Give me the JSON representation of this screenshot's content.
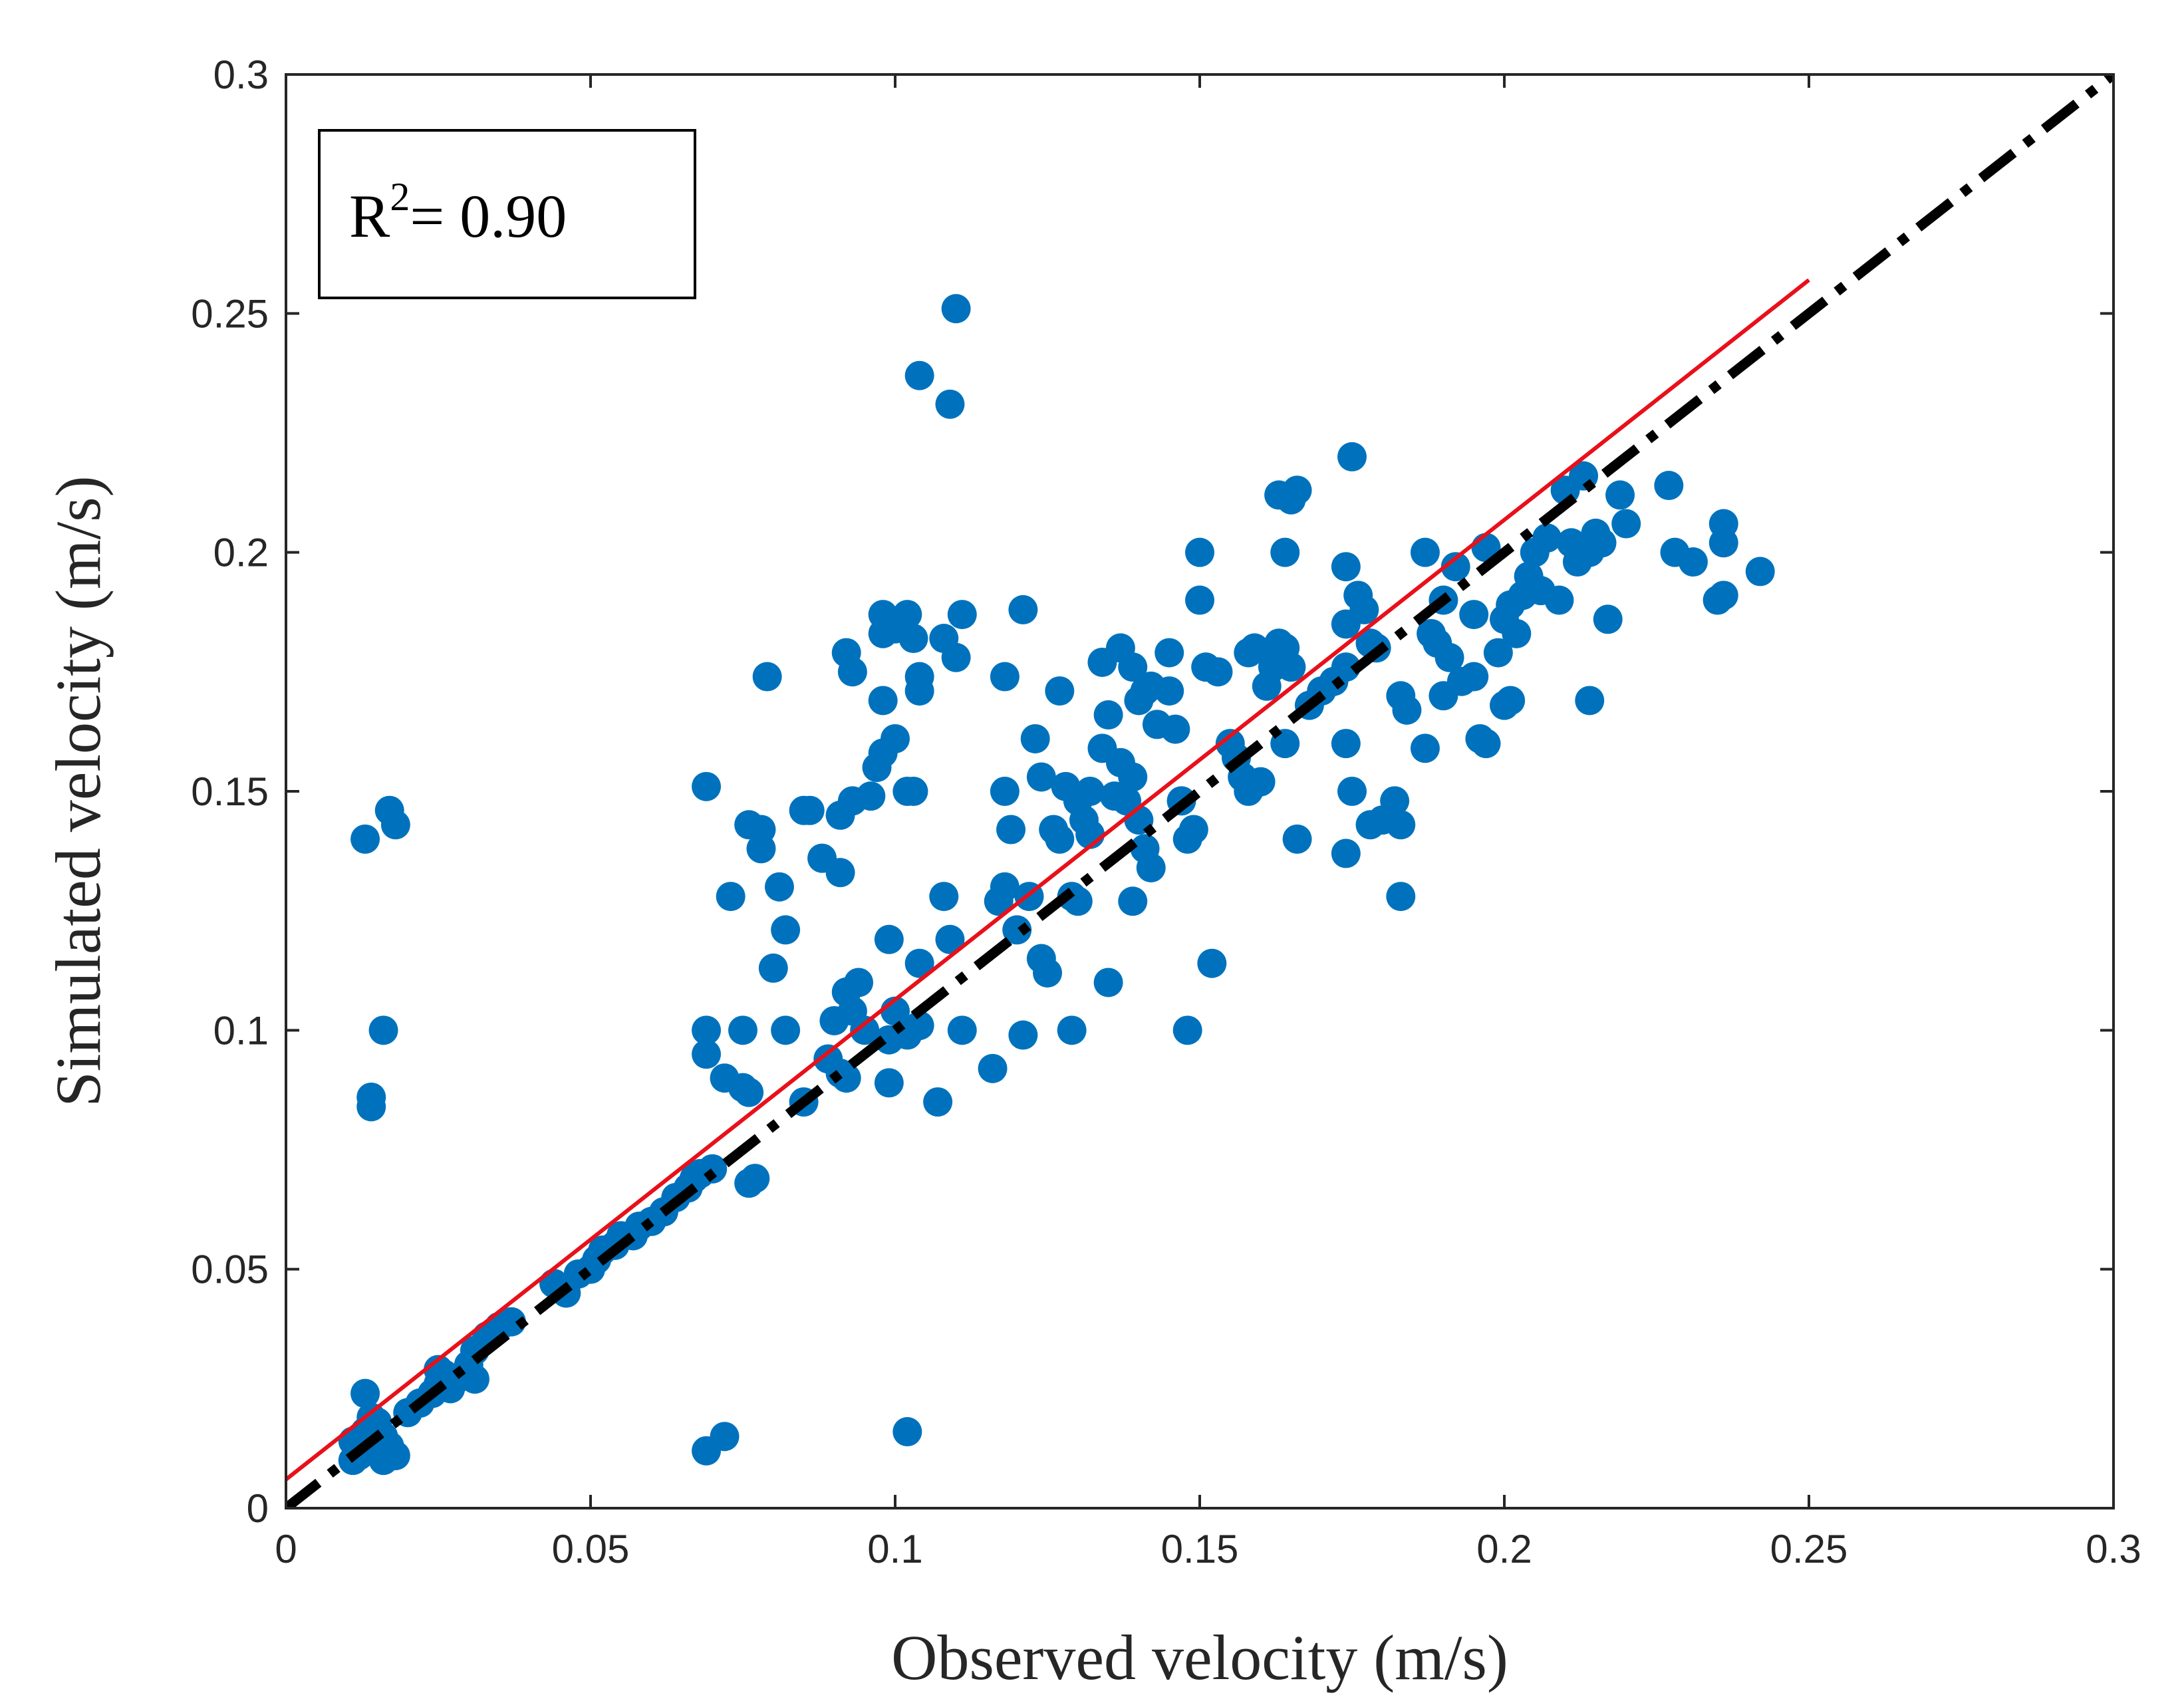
{
  "chart_data": {
    "type": "scatter",
    "xlabel": "Observed velocity (m/s)",
    "ylabel": "Simulated velocity (m/s)",
    "xlim": [
      0,
      0.3
    ],
    "ylim": [
      0,
      0.3
    ],
    "xticks": [
      0,
      0.05,
      0.1,
      0.15,
      0.2,
      0.25,
      0.3
    ],
    "yticks": [
      0,
      0.05,
      0.1,
      0.15,
      0.2,
      0.25,
      0.3
    ],
    "xtick_labels": [
      "0",
      "0.05",
      "0.1",
      "0.15",
      "0.2",
      "0.25",
      "0.3"
    ],
    "ytick_labels": [
      "0",
      "0.05",
      "0.1",
      "0.15",
      "0.2",
      "0.25",
      "0.3"
    ],
    "annotation": {
      "r_symbol": "R",
      "superscript": "2",
      "value_text": "= 0.90"
    },
    "colors": {
      "points": "#0072BD",
      "fit_line": "#E8101A",
      "identity_line": "#000000"
    },
    "fit_line": {
      "name": "linear fit",
      "x": [
        0,
        0.25
      ],
      "y": [
        0.006,
        0.257
      ]
    },
    "identity_line": {
      "name": "1:1 line",
      "x": [
        0,
        0.3
      ],
      "y": [
        0,
        0.3
      ]
    },
    "series": [
      {
        "name": "observations",
        "points": [
          [
            0.011,
            0.014
          ],
          [
            0.012,
            0.012
          ],
          [
            0.013,
            0.016
          ],
          [
            0.014,
            0.012
          ],
          [
            0.015,
            0.018
          ],
          [
            0.016,
            0.015
          ],
          [
            0.012,
            0.011
          ],
          [
            0.017,
            0.013
          ],
          [
            0.018,
            0.011
          ],
          [
            0.013,
            0.024
          ],
          [
            0.014,
            0.019
          ],
          [
            0.011,
            0.01
          ],
          [
            0.016,
            0.01
          ],
          [
            0.015,
            0.014
          ],
          [
            0.013,
            0.14
          ],
          [
            0.017,
            0.146
          ],
          [
            0.018,
            0.143
          ],
          [
            0.016,
            0.1
          ],
          [
            0.014,
            0.086
          ],
          [
            0.014,
            0.084
          ],
          [
            0.02,
            0.02
          ],
          [
            0.022,
            0.022
          ],
          [
            0.024,
            0.024
          ],
          [
            0.025,
            0.026
          ],
          [
            0.026,
            0.028
          ],
          [
            0.028,
            0.027
          ],
          [
            0.03,
            0.03
          ],
          [
            0.031,
            0.033
          ],
          [
            0.033,
            0.036
          ],
          [
            0.035,
            0.038
          ],
          [
            0.037,
            0.039
          ],
          [
            0.025,
            0.029
          ],
          [
            0.027,
            0.025
          ],
          [
            0.031,
            0.027
          ],
          [
            0.044,
            0.047
          ],
          [
            0.046,
            0.045
          ],
          [
            0.048,
            0.049
          ],
          [
            0.05,
            0.05
          ],
          [
            0.051,
            0.052
          ],
          [
            0.052,
            0.054
          ],
          [
            0.054,
            0.055
          ],
          [
            0.055,
            0.057
          ],
          [
            0.057,
            0.057
          ],
          [
            0.058,
            0.059
          ],
          [
            0.06,
            0.06
          ],
          [
            0.062,
            0.062
          ],
          [
            0.064,
            0.065
          ],
          [
            0.066,
            0.067
          ],
          [
            0.067,
            0.069
          ],
          [
            0.068,
            0.07
          ],
          [
            0.07,
            0.071
          ],
          [
            0.077,
            0.069
          ],
          [
            0.076,
            0.068
          ],
          [
            0.072,
            0.09
          ],
          [
            0.075,
            0.088
          ],
          [
            0.076,
            0.087
          ],
          [
            0.069,
            0.095
          ],
          [
            0.069,
            0.1
          ],
          [
            0.075,
            0.1
          ],
          [
            0.08,
            0.113
          ],
          [
            0.082,
            0.121
          ],
          [
            0.082,
            0.1
          ],
          [
            0.073,
            0.128
          ],
          [
            0.081,
            0.13
          ],
          [
            0.078,
            0.138
          ],
          [
            0.076,
            0.143
          ],
          [
            0.078,
            0.142
          ],
          [
            0.085,
            0.146
          ],
          [
            0.086,
            0.146
          ],
          [
            0.091,
            0.133
          ],
          [
            0.088,
            0.136
          ],
          [
            0.069,
            0.151
          ],
          [
            0.079,
            0.174
          ],
          [
            0.085,
            0.085
          ],
          [
            0.089,
            0.094
          ],
          [
            0.09,
            0.102
          ],
          [
            0.091,
            0.091
          ],
          [
            0.092,
            0.108
          ],
          [
            0.093,
            0.104
          ],
          [
            0.094,
            0.11
          ],
          [
            0.092,
            0.09
          ],
          [
            0.095,
            0.1
          ],
          [
            0.099,
            0.098
          ],
          [
            0.099,
            0.089
          ],
          [
            0.1,
            0.104
          ],
          [
            0.102,
            0.099
          ],
          [
            0.104,
            0.101
          ],
          [
            0.099,
            0.119
          ],
          [
            0.104,
            0.114
          ],
          [
            0.107,
            0.085
          ],
          [
            0.069,
            0.012
          ],
          [
            0.072,
            0.015
          ],
          [
            0.102,
            0.016
          ],
          [
            0.091,
            0.145
          ],
          [
            0.093,
            0.148
          ],
          [
            0.096,
            0.149
          ],
          [
            0.097,
            0.155
          ],
          [
            0.098,
            0.158
          ],
          [
            0.1,
            0.161
          ],
          [
            0.102,
            0.15
          ],
          [
            0.103,
            0.15
          ],
          [
            0.098,
            0.169
          ],
          [
            0.092,
            0.179
          ],
          [
            0.093,
            0.175
          ],
          [
            0.098,
            0.183
          ],
          [
            0.098,
            0.187
          ],
          [
            0.1,
            0.184
          ],
          [
            0.102,
            0.187
          ],
          [
            0.103,
            0.182
          ],
          [
            0.104,
            0.174
          ],
          [
            0.104,
            0.171
          ],
          [
            0.108,
            0.182
          ],
          [
            0.11,
            0.178
          ],
          [
            0.111,
            0.187
          ],
          [
            0.104,
            0.237
          ],
          [
            0.11,
            0.251
          ],
          [
            0.109,
            0.231
          ],
          [
            0.108,
            0.128
          ],
          [
            0.109,
            0.119
          ],
          [
            0.111,
            0.1
          ],
          [
            0.116,
            0.092
          ],
          [
            0.121,
            0.099
          ],
          [
            0.117,
            0.127
          ],
          [
            0.118,
            0.13
          ],
          [
            0.12,
            0.121
          ],
          [
            0.122,
            0.128
          ],
          [
            0.124,
            0.115
          ],
          [
            0.125,
            0.112
          ],
          [
            0.129,
            0.1
          ],
          [
            0.118,
            0.15
          ],
          [
            0.119,
            0.142
          ],
          [
            0.121,
            0.188
          ],
          [
            0.118,
            0.174
          ],
          [
            0.123,
            0.161
          ],
          [
            0.124,
            0.153
          ],
          [
            0.126,
            0.142
          ],
          [
            0.127,
            0.14
          ],
          [
            0.127,
            0.171
          ],
          [
            0.128,
            0.151
          ],
          [
            0.13,
            0.148
          ],
          [
            0.131,
            0.144
          ],
          [
            0.132,
            0.141
          ],
          [
            0.129,
            0.128
          ],
          [
            0.13,
            0.127
          ],
          [
            0.132,
            0.15
          ],
          [
            0.134,
            0.159
          ],
          [
            0.135,
            0.166
          ],
          [
            0.134,
            0.177
          ],
          [
            0.137,
            0.18
          ],
          [
            0.139,
            0.176
          ],
          [
            0.14,
            0.169
          ],
          [
            0.141,
            0.171
          ],
          [
            0.142,
            0.172
          ],
          [
            0.143,
            0.164
          ],
          [
            0.145,
            0.179
          ],
          [
            0.145,
            0.171
          ],
          [
            0.146,
            0.163
          ],
          [
            0.136,
            0.149
          ],
          [
            0.137,
            0.156
          ],
          [
            0.139,
            0.153
          ],
          [
            0.138,
            0.148
          ],
          [
            0.14,
            0.144
          ],
          [
            0.141,
            0.138
          ],
          [
            0.142,
            0.134
          ],
          [
            0.139,
            0.127
          ],
          [
            0.135,
            0.11
          ],
          [
            0.147,
            0.148
          ],
          [
            0.148,
            0.14
          ],
          [
            0.149,
            0.142
          ],
          [
            0.148,
            0.1
          ],
          [
            0.152,
            0.114
          ],
          [
            0.15,
            0.2
          ],
          [
            0.15,
            0.19
          ],
          [
            0.151,
            0.176
          ],
          [
            0.153,
            0.175
          ],
          [
            0.155,
            0.16
          ],
          [
            0.156,
            0.157
          ],
          [
            0.157,
            0.153
          ],
          [
            0.158,
            0.179
          ],
          [
            0.159,
            0.18
          ],
          [
            0.161,
            0.172
          ],
          [
            0.162,
            0.176
          ],
          [
            0.163,
            0.181
          ],
          [
            0.164,
            0.18
          ],
          [
            0.165,
            0.176
          ],
          [
            0.163,
            0.212
          ],
          [
            0.165,
            0.211
          ],
          [
            0.166,
            0.213
          ],
          [
            0.164,
            0.2
          ],
          [
            0.158,
            0.15
          ],
          [
            0.16,
            0.152
          ],
          [
            0.164,
            0.16
          ],
          [
            0.168,
            0.168
          ],
          [
            0.17,
            0.171
          ],
          [
            0.172,
            0.173
          ],
          [
            0.174,
            0.176
          ],
          [
            0.166,
            0.14
          ],
          [
            0.174,
            0.137
          ],
          [
            0.174,
            0.16
          ],
          [
            0.175,
            0.15
          ],
          [
            0.175,
            0.22
          ],
          [
            0.174,
            0.197
          ],
          [
            0.176,
            0.191
          ],
          [
            0.177,
            0.188
          ],
          [
            0.174,
            0.185
          ],
          [
            0.178,
            0.181
          ],
          [
            0.179,
            0.18
          ],
          [
            0.178,
            0.143
          ],
          [
            0.18,
            0.144
          ],
          [
            0.182,
            0.148
          ],
          [
            0.183,
            0.143
          ],
          [
            0.183,
            0.128
          ],
          [
            0.183,
            0.17
          ],
          [
            0.184,
            0.167
          ],
          [
            0.187,
            0.159
          ],
          [
            0.187,
            0.2
          ],
          [
            0.188,
            0.183
          ],
          [
            0.189,
            0.181
          ],
          [
            0.19,
            0.19
          ],
          [
            0.19,
            0.17
          ],
          [
            0.191,
            0.178
          ],
          [
            0.192,
            0.197
          ],
          [
            0.193,
            0.173
          ],
          [
            0.195,
            0.174
          ],
          [
            0.195,
            0.187
          ],
          [
            0.196,
            0.161
          ],
          [
            0.197,
            0.16
          ],
          [
            0.197,
            0.201
          ],
          [
            0.199,
            0.179
          ],
          [
            0.2,
            0.186
          ],
          [
            0.2,
            0.168
          ],
          [
            0.201,
            0.169
          ],
          [
            0.201,
            0.189
          ],
          [
            0.202,
            0.183
          ],
          [
            0.203,
            0.191
          ],
          [
            0.204,
            0.195
          ],
          [
            0.205,
            0.2
          ],
          [
            0.206,
            0.192
          ],
          [
            0.207,
            0.203
          ],
          [
            0.209,
            0.19
          ],
          [
            0.21,
            0.213
          ],
          [
            0.211,
            0.202
          ],
          [
            0.212,
            0.198
          ],
          [
            0.213,
            0.216
          ],
          [
            0.214,
            0.2
          ],
          [
            0.214,
            0.169
          ],
          [
            0.215,
            0.204
          ],
          [
            0.216,
            0.202
          ],
          [
            0.217,
            0.186
          ],
          [
            0.219,
            0.212
          ],
          [
            0.22,
            0.206
          ],
          [
            0.227,
            0.214
          ],
          [
            0.228,
            0.2
          ],
          [
            0.231,
            0.198
          ],
          [
            0.235,
            0.19
          ],
          [
            0.236,
            0.191
          ],
          [
            0.236,
            0.202
          ],
          [
            0.236,
            0.206
          ],
          [
            0.242,
            0.196
          ]
        ]
      }
    ]
  }
}
